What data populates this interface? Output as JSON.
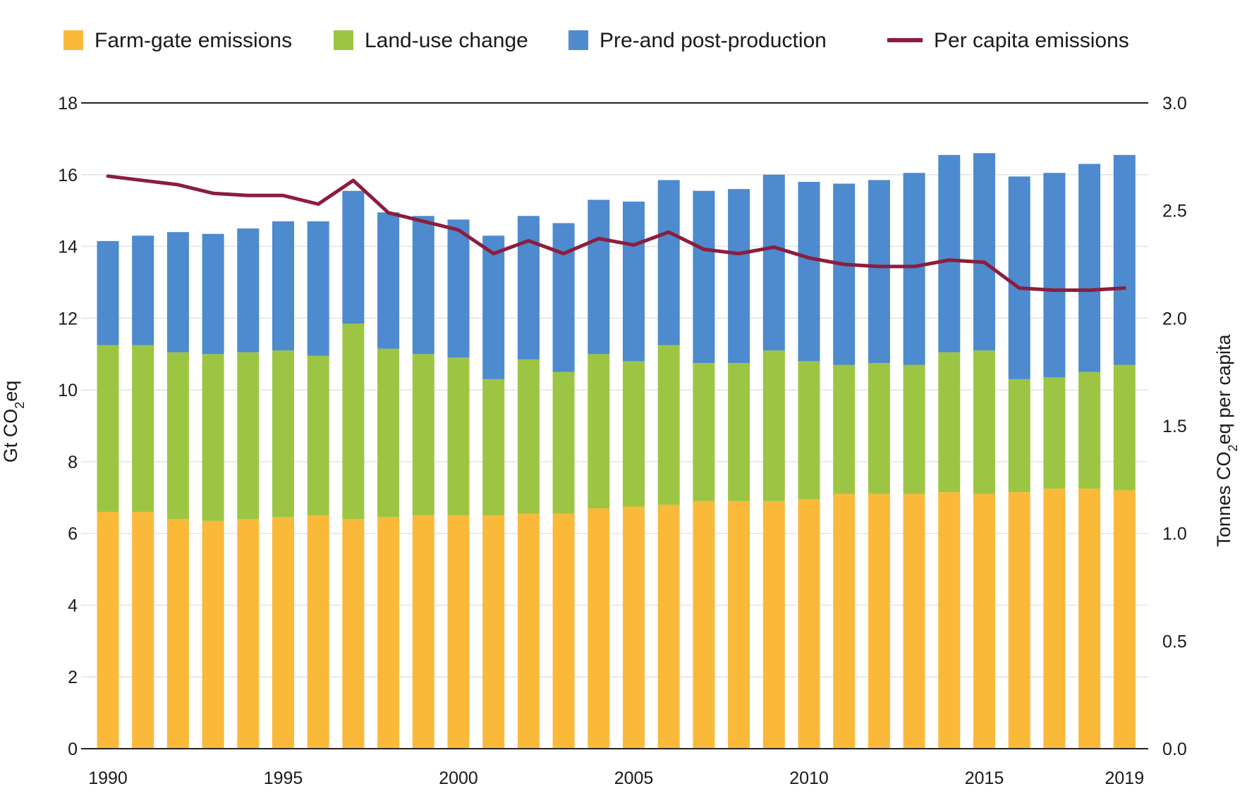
{
  "chart_data": {
    "type": "bar",
    "stacked": true,
    "title": "",
    "categories": [
      1990,
      1991,
      1992,
      1993,
      1994,
      1995,
      1996,
      1997,
      1998,
      1999,
      2000,
      2001,
      2002,
      2003,
      2004,
      2005,
      2006,
      2007,
      2008,
      2009,
      2010,
      2011,
      2012,
      2013,
      2014,
      2015,
      2016,
      2017,
      2018,
      2019
    ],
    "x_tick_labels": [
      "1990",
      "1995",
      "2000",
      "2005",
      "2010",
      "2015",
      "2019"
    ],
    "series": [
      {
        "name": "Farm-gate emissions",
        "color": "#FBB93A",
        "values": [
          6.6,
          6.6,
          6.4,
          6.35,
          6.4,
          6.45,
          6.5,
          6.4,
          6.45,
          6.5,
          6.5,
          6.5,
          6.55,
          6.55,
          6.7,
          6.75,
          6.8,
          6.9,
          6.9,
          6.9,
          6.95,
          7.1,
          7.1,
          7.1,
          7.15,
          7.1,
          7.15,
          7.25,
          7.25,
          7.2
        ]
      },
      {
        "name": "Land-use change",
        "color": "#9DC544",
        "values": [
          4.65,
          4.65,
          4.65,
          4.65,
          4.65,
          4.65,
          4.45,
          5.45,
          4.7,
          4.5,
          4.4,
          3.8,
          4.3,
          3.95,
          4.3,
          4.05,
          4.45,
          3.85,
          3.85,
          4.2,
          3.85,
          3.6,
          3.65,
          3.6,
          3.9,
          4.0,
          3.15,
          3.1,
          3.25,
          3.5
        ]
      },
      {
        "name": "Pre-and post-production",
        "color": "#4D8ACE",
        "values": [
          2.9,
          3.05,
          3.35,
          3.35,
          3.45,
          3.6,
          3.75,
          3.7,
          3.8,
          3.85,
          3.85,
          4.0,
          4.0,
          4.15,
          4.3,
          4.45,
          4.6,
          4.8,
          4.85,
          4.9,
          5.0,
          5.05,
          5.1,
          5.35,
          5.5,
          5.5,
          5.65,
          5.7,
          5.8,
          5.85
        ]
      }
    ],
    "line_series": {
      "name": "Per capita emissions",
      "color": "#8C1D3D",
      "axis": "right",
      "values": [
        2.66,
        2.64,
        2.62,
        2.58,
        2.57,
        2.57,
        2.53,
        2.64,
        2.49,
        2.45,
        2.41,
        2.3,
        2.36,
        2.3,
        2.37,
        2.34,
        2.4,
        2.32,
        2.3,
        2.33,
        2.28,
        2.25,
        2.24,
        2.24,
        2.27,
        2.26,
        2.14,
        2.13,
        2.13,
        2.14
      ]
    },
    "ylabel": "Gt CO₂eq",
    "ylabel_parts": {
      "pre": "Gt CO",
      "sub": "2",
      "post": "eq"
    },
    "ylim": [
      0,
      18
    ],
    "y_ticks": [
      "0",
      "2",
      "4",
      "6",
      "8",
      "10",
      "12",
      "14",
      "16",
      "18"
    ],
    "y2label": "Tonnes CO₂eq per capita",
    "y2label_parts": {
      "pre": "Tonnes CO",
      "sub": "2",
      "post": "eq per capita"
    },
    "y2lim": [
      0,
      3
    ],
    "y2_ticks": [
      "0.0",
      "0.5",
      "1.0",
      "1.5",
      "2.0",
      "2.5",
      "3.0"
    ],
    "grid": true,
    "legend_position": "top",
    "legend": [
      {
        "label": "Farm-gate emissions",
        "kind": "box",
        "color": "#FBB93A"
      },
      {
        "label": "Land-use change",
        "kind": "box",
        "color": "#9DC544"
      },
      {
        "label": "Pre-and post-production",
        "kind": "box",
        "color": "#4D8ACE"
      },
      {
        "label": "Per capita emissions",
        "kind": "line",
        "color": "#8C1D3D"
      }
    ]
  }
}
